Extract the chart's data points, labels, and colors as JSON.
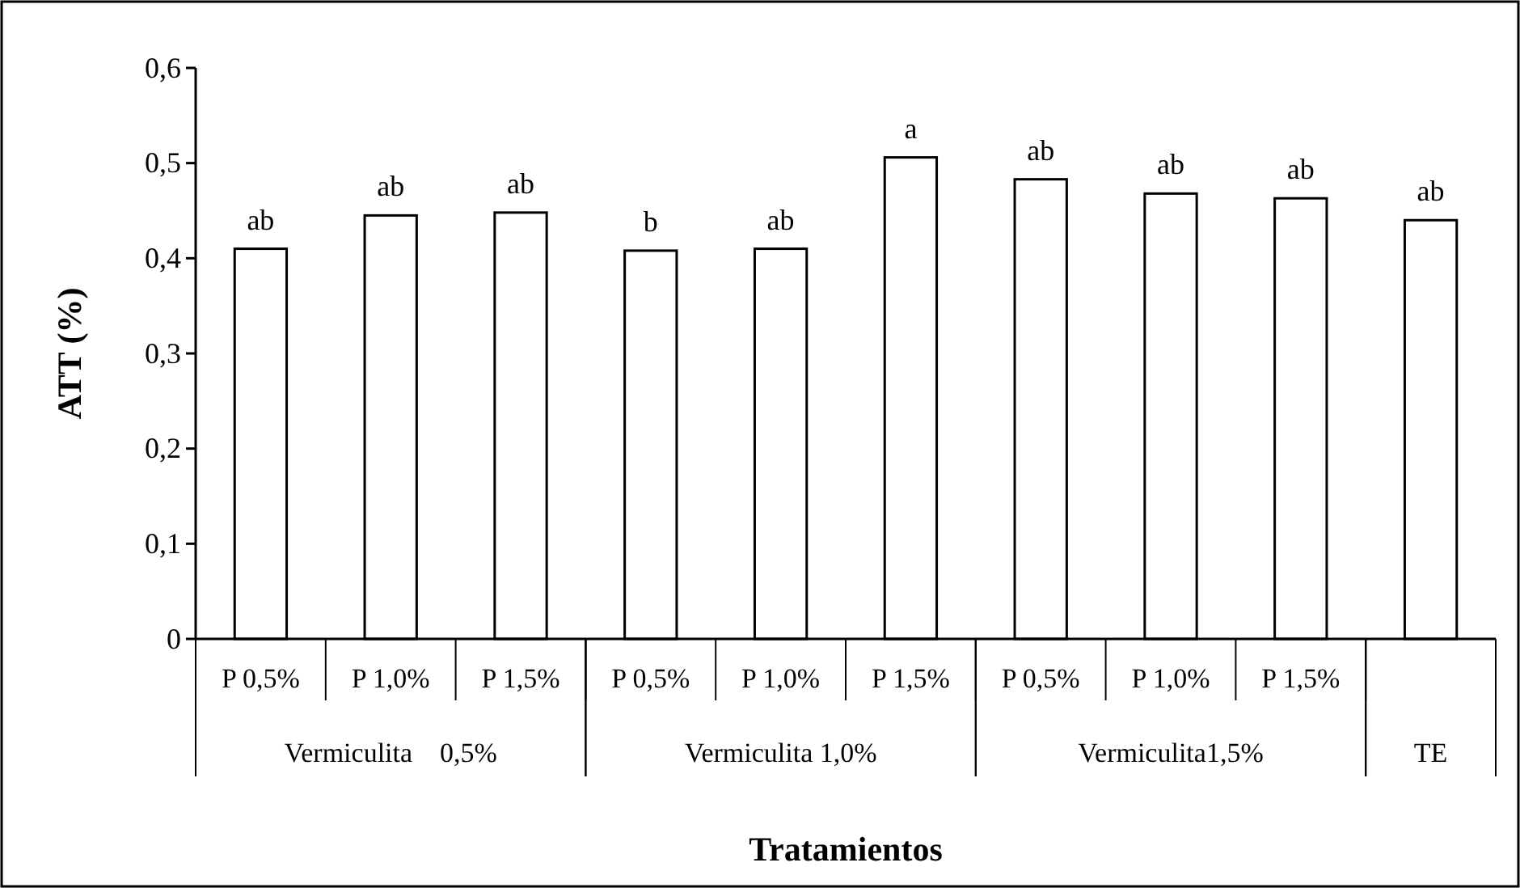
{
  "chart_data": {
    "type": "bar",
    "ylabel": "ATT (%)",
    "xlabel": "Tratamientos",
    "categories": [
      "P 0,5%",
      "P 1,0%",
      "P 1,5%",
      "P 0,5%",
      "P 1,0%",
      "P 1,5%",
      "P 0,5%",
      "P 1,0%",
      "P 1,5%",
      null
    ],
    "values": [
      0.41,
      0.445,
      0.448,
      0.408,
      0.41,
      0.506,
      0.483,
      0.468,
      0.463,
      0.44
    ],
    "value_labels": [
      "ab",
      "ab",
      "ab",
      "b",
      "ab",
      "a",
      "ab",
      "ab",
      "ab",
      "ab"
    ],
    "color": "#ffffff",
    "ylim": [
      0,
      0.6
    ],
    "yticks": [
      {
        "value": 0,
        "label": "0"
      },
      {
        "value": 0.1,
        "label": "0,1"
      },
      {
        "value": 0.2,
        "label": "0,2"
      },
      {
        "value": 0.3,
        "label": "0,3"
      },
      {
        "value": 0.4,
        "label": "0,4"
      },
      {
        "value": 0.5,
        "label": "0,5"
      },
      {
        "value": 0.6,
        "label": "0,6"
      }
    ],
    "annotations": [
      "Vermiculita    0,5%",
      "Vermiculita 1,0%",
      "Vermiculita1,5%",
      "TE"
    ]
  }
}
